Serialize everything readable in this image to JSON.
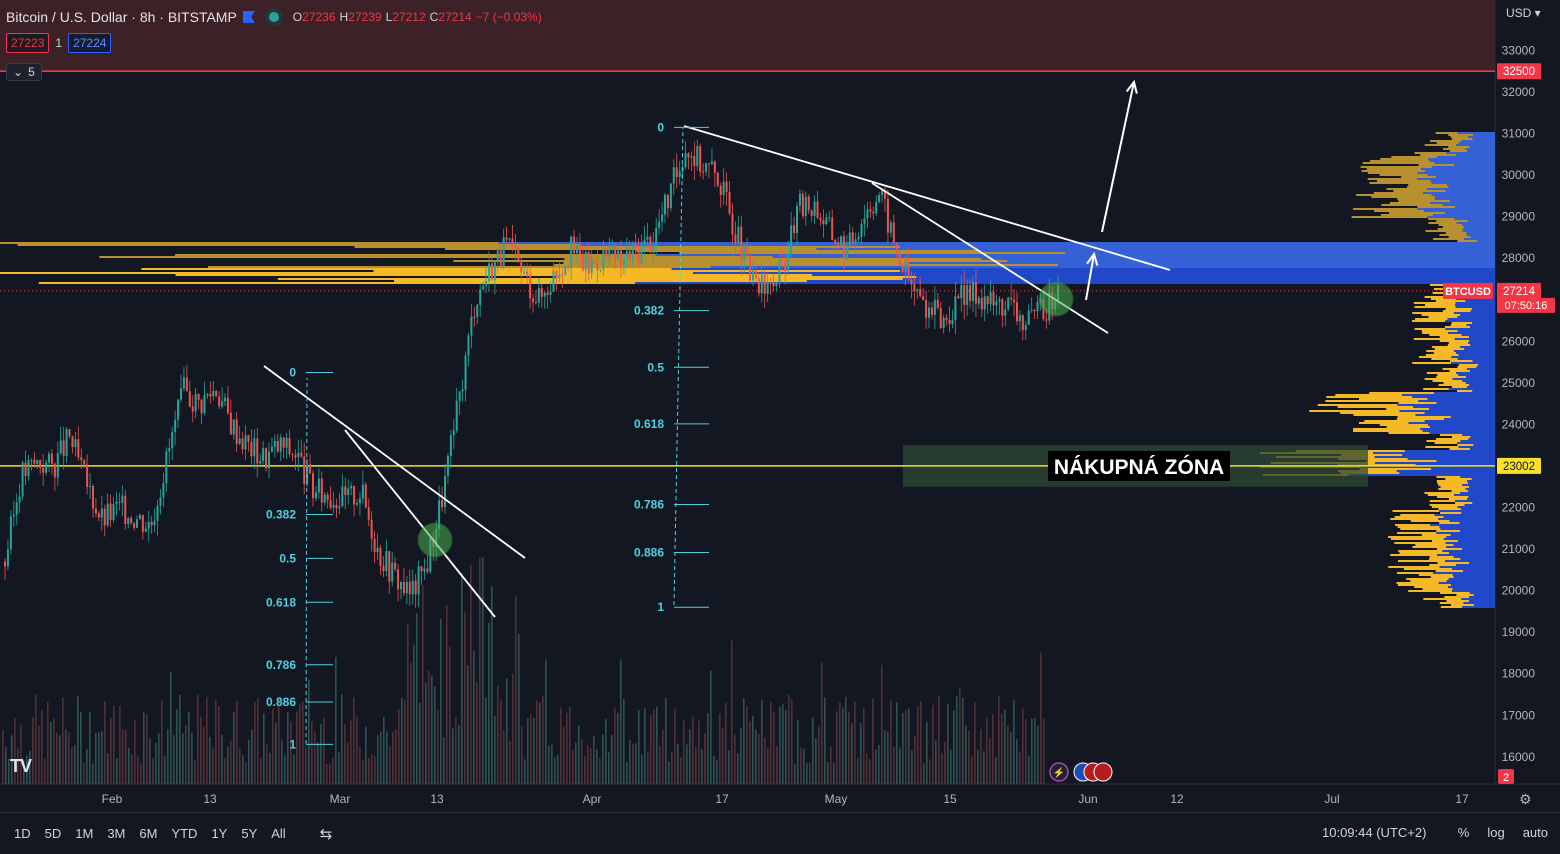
{
  "header": {
    "title": "Bitcoin / U.S. Dollar · 8h · BITSTAMP",
    "ohlc": [
      {
        "k": "O",
        "v": "27236"
      },
      {
        "k": "H",
        "v": "27239"
      },
      {
        "k": "L",
        "v": "27212"
      },
      {
        "k": "C",
        "v": "27214"
      },
      {
        "k": "",
        "v": "−7 (−0.03%)"
      }
    ],
    "bid": "27223",
    "spread": "1",
    "ask": "27224",
    "indicators_collapsed": "5"
  },
  "price_axis": {
    "currency": "USD",
    "ticks": [
      33000,
      32000,
      31000,
      30000,
      29000,
      28000,
      26000,
      25000,
      24000,
      22000,
      21000,
      20000,
      19000,
      18000,
      17000,
      16000
    ],
    "labels": [
      {
        "text": "32500",
        "value": 32500,
        "color": "#f23645"
      },
      {
        "text": "27214",
        "value": 27214,
        "color": "#f23645"
      },
      {
        "text": "23002",
        "value": 23002,
        "color": "#f7e12b"
      }
    ],
    "symbol_tag": "BTCUSD",
    "countdown": "07:50:16",
    "alerts_badge": "2"
  },
  "time_axis": {
    "labels": [
      "Feb",
      "13",
      "Mar",
      "13",
      "Apr",
      "17",
      "May",
      "15",
      "Jun",
      "12",
      "Jul",
      "17"
    ]
  },
  "chart_data": {
    "type": "candlestick",
    "title": "Bitcoin / U.S. Dollar · 8h · BITSTAMP",
    "x_range": [
      "Jan 25",
      "Jul 25"
    ],
    "ylim": [
      15500,
      33500
    ],
    "series": [
      {
        "name": "BTCUSD",
        "values": [
          20700,
          22800,
          23100,
          23000,
          23700,
          22600,
          21700,
          22000,
          21800,
          21600,
          23200,
          24800,
          24500,
          24900,
          24000,
          23500,
          23200,
          23500,
          23300,
          22400,
          22300,
          22200,
          22400,
          21000,
          20400,
          19900,
          20600,
          22300,
          24500,
          27000,
          27800,
          28300,
          27600,
          27000,
          27700,
          28200,
          27800,
          28100,
          27900,
          28200,
          28500,
          29500,
          30700,
          30300,
          30000,
          28800,
          27500,
          27200,
          27800,
          29200,
          29300,
          28600,
          28200,
          29100,
          29600,
          28200,
          27300,
          26800,
          26500,
          27000,
          27200,
          26900,
          26900,
          26400,
          26700,
          27214
        ]
      }
    ],
    "horizontal_levels": [
      {
        "value": 32500,
        "color": "#f23645"
      },
      {
        "value": 23002,
        "color": "#f7e12b"
      }
    ],
    "fib_retracements": [
      {
        "levels": [
          "0",
          "0.382",
          "0.5",
          "0.618",
          "0.786",
          "0.886",
          "1"
        ],
        "high": 25250,
        "low": 16300
      },
      {
        "levels": [
          "0",
          "0.382",
          "0.5",
          "0.618",
          "0.786",
          "0.886",
          "1"
        ],
        "high": 31150,
        "low": 19600
      }
    ],
    "zone_label": "NÁKUPNÁ ZÓNA",
    "zone_range": [
      22500,
      23500
    ],
    "volume_profile": "right-side",
    "grid": false
  }
}
